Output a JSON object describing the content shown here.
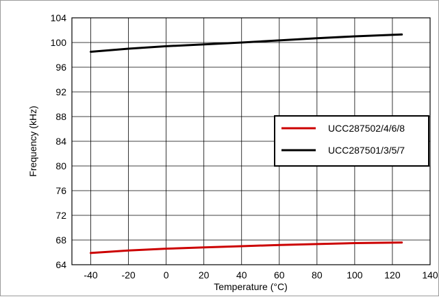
{
  "chart_data": {
    "type": "line",
    "xlabel": "Temperature (°C)",
    "ylabel": "Frequency (kHz)",
    "xlim": [
      -50,
      140
    ],
    "ylim": [
      64,
      104
    ],
    "x_ticks": [
      -40,
      -20,
      0,
      20,
      40,
      60,
      80,
      100,
      120,
      140
    ],
    "y_ticks": [
      64,
      68,
      72,
      76,
      80,
      84,
      88,
      92,
      96,
      100,
      104
    ],
    "grid": true,
    "legend_position": "right-middle",
    "series": [
      {
        "name": "UCC287502/4/6/8",
        "color": "#cc0000",
        "x": [
          -40,
          -20,
          0,
          20,
          40,
          60,
          80,
          100,
          125
        ],
        "y": [
          65.9,
          66.3,
          66.6,
          66.8,
          67.0,
          67.2,
          67.35,
          67.5,
          67.6
        ]
      },
      {
        "name": "UCC287501/3/5/7",
        "color": "#000000",
        "x": [
          -40,
          -20,
          0,
          20,
          40,
          60,
          80,
          100,
          125
        ],
        "y": [
          98.5,
          99.0,
          99.4,
          99.7,
          100.0,
          100.35,
          100.7,
          101.0,
          101.3
        ]
      }
    ]
  }
}
